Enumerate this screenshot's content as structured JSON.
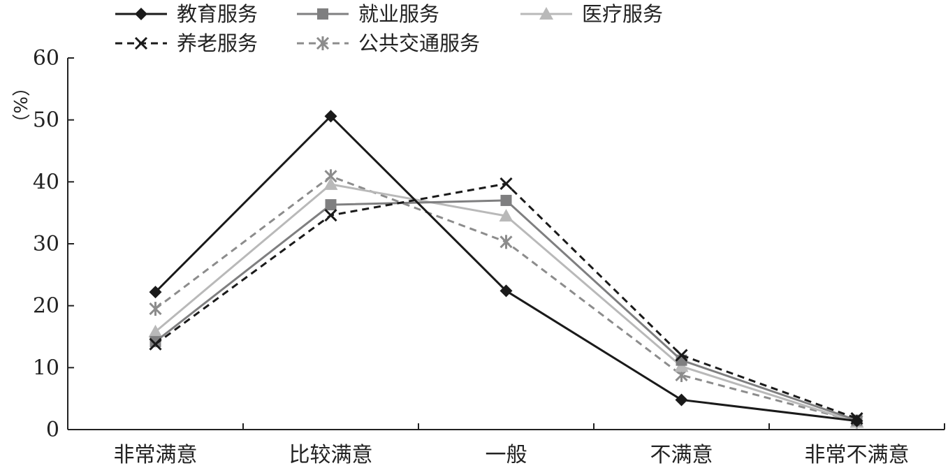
{
  "chart_data": {
    "type": "line",
    "categories": [
      "非常满意",
      "比较满意",
      "一般",
      "不满意",
      "非常不满意"
    ],
    "ylabel": "（%）",
    "ylim": [
      0,
      60
    ],
    "yticks": [
      0,
      10,
      20,
      30,
      40,
      50,
      60
    ],
    "grid": false,
    "legend_position": "top",
    "series": [
      {
        "name": "教育服务",
        "values": [
          22.2,
          50.6,
          22.4,
          4.8,
          1.4
        ],
        "color": "#1a1a1a",
        "marker": "diamond",
        "dash": "solid"
      },
      {
        "name": "就业服务",
        "values": [
          14.2,
          36.3,
          37.0,
          11.2,
          1.5
        ],
        "color": "#7f7f80",
        "marker": "square",
        "dash": "solid"
      },
      {
        "name": "医疗服务",
        "values": [
          15.8,
          39.6,
          34.5,
          10.2,
          1.2
        ],
        "color": "#b9b9b9",
        "marker": "triangle",
        "dash": "solid"
      },
      {
        "name": "养老服务",
        "values": [
          13.8,
          34.6,
          39.7,
          12.0,
          1.8
        ],
        "color": "#1a1a1a",
        "marker": "x",
        "dash": "dashed"
      },
      {
        "name": "公共交通服务",
        "values": [
          19.5,
          40.9,
          30.3,
          8.8,
          1.3
        ],
        "color": "#8c8c8c",
        "marker": "asterisk",
        "dash": "dashed"
      }
    ]
  }
}
